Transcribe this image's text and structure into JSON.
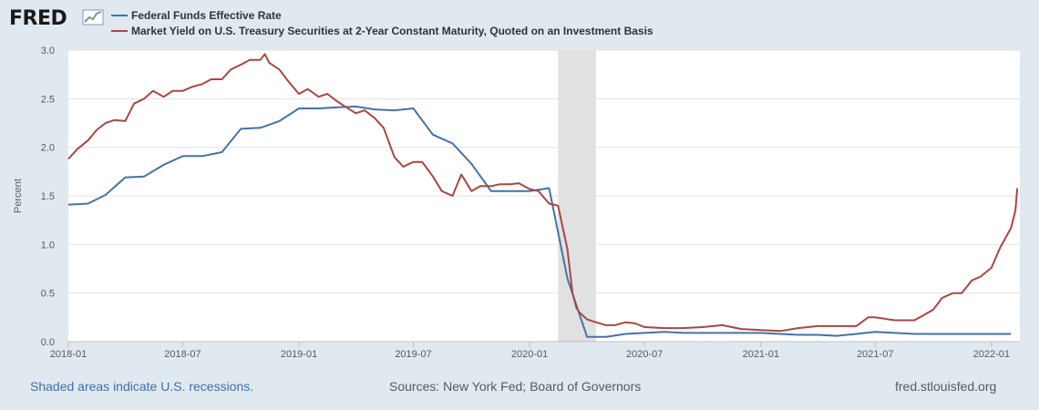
{
  "header": {
    "logo_text": "FRED",
    "logo_icon": "fred-chart-icon"
  },
  "legend": [
    {
      "label": "Federal Funds Effective Rate",
      "color": "#4572a7"
    },
    {
      "label": "Market Yield on U.S. Treasury Securities at 2-Year Constant Maturity, Quoted on an Investment Basis",
      "color": "#aa4643"
    }
  ],
  "footer": {
    "recession_note": "Shaded areas indicate U.S. recessions.",
    "sources": "Sources: New York Fed; Board of Governors",
    "site": "fred.stlouisfed.org"
  },
  "chart_data": {
    "type": "line",
    "ylabel": "Percent",
    "ylim": [
      0.0,
      3.0
    ],
    "xlim": [
      "2018-01-01",
      "2022-02-15"
    ],
    "y_ticks": [
      "0.0",
      "0.5",
      "1.0",
      "1.5",
      "2.0",
      "2.5",
      "3.0"
    ],
    "x_ticks": [
      {
        "label": "2018-01",
        "date": "2018-01-01"
      },
      {
        "label": "2018-07",
        "date": "2018-07-01"
      },
      {
        "label": "2019-01",
        "date": "2019-01-01"
      },
      {
        "label": "2019-07",
        "date": "2019-07-01"
      },
      {
        "label": "2020-01",
        "date": "2020-01-01"
      },
      {
        "label": "2020-07",
        "date": "2020-07-01"
      },
      {
        "label": "2021-01",
        "date": "2021-01-01"
      },
      {
        "label": "2021-07",
        "date": "2021-07-01"
      },
      {
        "label": "2022-01",
        "date": "2022-01-01"
      }
    ],
    "grid": true,
    "recession": {
      "start": "2020-02-15",
      "end": "2020-04-15"
    },
    "series": [
      {
        "name": "Federal Funds Effective Rate",
        "color": "#4572a7",
        "x": [
          "2018-01-01",
          "2018-02-01",
          "2018-03-01",
          "2018-04-01",
          "2018-05-01",
          "2018-06-01",
          "2018-07-01",
          "2018-08-01",
          "2018-09-01",
          "2018-10-01",
          "2018-11-01",
          "2018-12-01",
          "2019-01-01",
          "2019-02-01",
          "2019-03-01",
          "2019-04-01",
          "2019-05-01",
          "2019-06-01",
          "2019-07-01",
          "2019-08-01",
          "2019-09-01",
          "2019-10-01",
          "2019-11-01",
          "2019-12-01",
          "2020-01-01",
          "2020-02-01",
          "2020-03-01",
          "2020-04-01",
          "2020-05-01",
          "2020-06-01",
          "2020-07-01",
          "2020-08-01",
          "2020-09-01",
          "2020-10-01",
          "2020-11-01",
          "2020-12-01",
          "2021-01-01",
          "2021-02-01",
          "2021-03-01",
          "2021-04-01",
          "2021-05-01",
          "2021-06-01",
          "2021-07-01",
          "2021-08-01",
          "2021-09-01",
          "2021-10-01",
          "2021-11-01",
          "2021-12-01",
          "2022-01-01",
          "2022-02-01"
        ],
        "values": [
          1.41,
          1.42,
          1.51,
          1.69,
          1.7,
          1.82,
          1.91,
          1.91,
          1.95,
          2.19,
          2.2,
          2.27,
          2.4,
          2.4,
          2.41,
          2.42,
          2.39,
          2.38,
          2.4,
          2.13,
          2.04,
          1.83,
          1.55,
          1.55,
          1.55,
          1.58,
          0.65,
          0.05,
          0.05,
          0.08,
          0.09,
          0.1,
          0.09,
          0.09,
          0.09,
          0.09,
          0.09,
          0.08,
          0.07,
          0.07,
          0.06,
          0.08,
          0.1,
          0.09,
          0.08,
          0.08,
          0.08,
          0.08,
          0.08,
          0.08
        ]
      },
      {
        "name": "Market Yield on U.S. Treasury Securities at 2-Year Constant Maturity, Quoted on an Investment Basis",
        "color": "#aa4643",
        "x": [
          "2018-01-01",
          "2018-01-15",
          "2018-02-01",
          "2018-02-15",
          "2018-03-01",
          "2018-03-15",
          "2018-04-01",
          "2018-04-15",
          "2018-05-01",
          "2018-05-15",
          "2018-06-01",
          "2018-06-15",
          "2018-07-01",
          "2018-07-15",
          "2018-08-01",
          "2018-08-15",
          "2018-09-01",
          "2018-09-15",
          "2018-10-01",
          "2018-10-15",
          "2018-11-01",
          "2018-11-08",
          "2018-11-15",
          "2018-12-01",
          "2018-12-15",
          "2019-01-01",
          "2019-01-15",
          "2019-02-01",
          "2019-02-15",
          "2019-03-01",
          "2019-03-15",
          "2019-04-01",
          "2019-04-15",
          "2019-05-01",
          "2019-05-15",
          "2019-06-01",
          "2019-06-15",
          "2019-07-01",
          "2019-07-15",
          "2019-08-01",
          "2019-08-15",
          "2019-09-01",
          "2019-09-15",
          "2019-10-01",
          "2019-10-15",
          "2019-11-01",
          "2019-11-15",
          "2019-12-01",
          "2019-12-15",
          "2020-01-01",
          "2020-01-15",
          "2020-02-01",
          "2020-02-15",
          "2020-03-01",
          "2020-03-09",
          "2020-03-15",
          "2020-03-20",
          "2020-04-01",
          "2020-04-15",
          "2020-05-01",
          "2020-05-15",
          "2020-06-01",
          "2020-06-15",
          "2020-07-01",
          "2020-08-01",
          "2020-09-01",
          "2020-10-01",
          "2020-11-01",
          "2020-12-01",
          "2021-01-01",
          "2021-02-01",
          "2021-03-01",
          "2021-04-01",
          "2021-05-01",
          "2021-06-01",
          "2021-06-20",
          "2021-07-01",
          "2021-08-01",
          "2021-09-01",
          "2021-09-15",
          "2021-10-01",
          "2021-10-15",
          "2021-11-01",
          "2021-11-15",
          "2021-12-01",
          "2021-12-15",
          "2022-01-01",
          "2022-01-15",
          "2022-02-01",
          "2022-02-08",
          "2022-02-11"
        ],
        "values": [
          1.88,
          1.98,
          2.07,
          2.18,
          2.25,
          2.28,
          2.27,
          2.45,
          2.5,
          2.58,
          2.52,
          2.58,
          2.58,
          2.62,
          2.65,
          2.7,
          2.7,
          2.8,
          2.85,
          2.9,
          2.9,
          2.96,
          2.87,
          2.8,
          2.68,
          2.55,
          2.6,
          2.52,
          2.55,
          2.48,
          2.42,
          2.35,
          2.38,
          2.3,
          2.2,
          1.9,
          1.8,
          1.85,
          1.85,
          1.7,
          1.55,
          1.5,
          1.72,
          1.55,
          1.6,
          1.6,
          1.62,
          1.62,
          1.63,
          1.57,
          1.55,
          1.42,
          1.4,
          0.95,
          0.5,
          0.35,
          0.3,
          0.23,
          0.2,
          0.17,
          0.17,
          0.2,
          0.19,
          0.15,
          0.14,
          0.14,
          0.15,
          0.17,
          0.13,
          0.12,
          0.11,
          0.14,
          0.16,
          0.16,
          0.16,
          0.25,
          0.25,
          0.22,
          0.22,
          0.27,
          0.33,
          0.45,
          0.5,
          0.5,
          0.63,
          0.67,
          0.76,
          0.97,
          1.17,
          1.35,
          1.58
        ]
      }
    ]
  }
}
